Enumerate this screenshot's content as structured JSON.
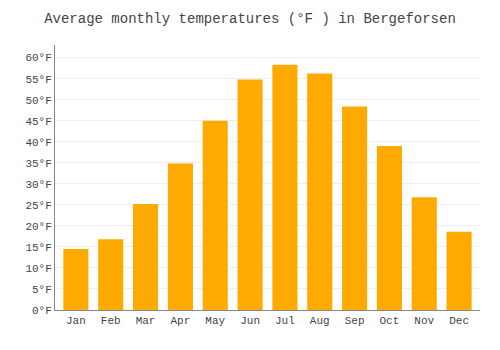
{
  "chart_data": {
    "type": "bar",
    "title": "Average monthly temperatures (°F ) in Bergeforsen",
    "categories": [
      "Jan",
      "Feb",
      "Mar",
      "Apr",
      "May",
      "Jun",
      "Jul",
      "Aug",
      "Sep",
      "Oct",
      "Nov",
      "Dec"
    ],
    "values": [
      14.5,
      16.8,
      25.2,
      34.8,
      45.0,
      54.8,
      58.3,
      56.2,
      48.4,
      39.0,
      26.8,
      18.6
    ],
    "color": "#FFAA00",
    "ylim": [
      0,
      63
    ],
    "yticks": [
      {
        "value": 0,
        "label": "0°F"
      },
      {
        "value": 5,
        "label": "5°F"
      },
      {
        "value": 10,
        "label": "10°F"
      },
      {
        "value": 15,
        "label": "15°F"
      },
      {
        "value": 20,
        "label": "20°F"
      },
      {
        "value": 25,
        "label": "25°F"
      },
      {
        "value": 30,
        "label": "30°F"
      },
      {
        "value": 35,
        "label": "35°F"
      },
      {
        "value": 40,
        "label": "40°F"
      },
      {
        "value": 45,
        "label": "45°F"
      },
      {
        "value": 50,
        "label": "50°F"
      },
      {
        "value": 55,
        "label": "55°F"
      },
      {
        "value": 60,
        "label": "60°F"
      }
    ],
    "grid": true
  }
}
